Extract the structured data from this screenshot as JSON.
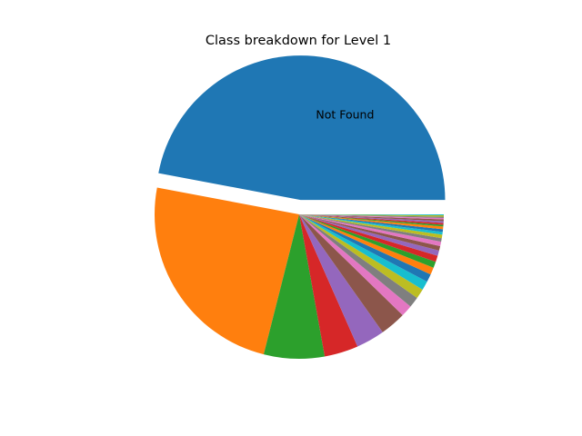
{
  "chart_data": {
    "type": "pie",
    "title": "Class breakdown for Level 1",
    "start_angle_deg": 0,
    "direction": "counterclockwise",
    "explode_first": true,
    "slices": [
      {
        "label": "Not Found",
        "value": 47.2,
        "color": "#1f77b4"
      },
      {
        "label": "",
        "value": 24.1,
        "color": "#ff7f0e"
      },
      {
        "label": "",
        "value": 6.8,
        "color": "#2ca02c"
      },
      {
        "label": "",
        "value": 3.8,
        "color": "#d62728"
      },
      {
        "label": "",
        "value": 3.2,
        "color": "#9467bd"
      },
      {
        "label": "",
        "value": 2.9,
        "color": "#8c564b"
      },
      {
        "label": "",
        "value": 1.3,
        "color": "#e377c2"
      },
      {
        "label": "",
        "value": 1.2,
        "color": "#7f7f7f"
      },
      {
        "label": "",
        "value": 1.1,
        "color": "#bcbd22"
      },
      {
        "label": "",
        "value": 1.0,
        "color": "#17becf"
      },
      {
        "label": "",
        "value": 0.9,
        "color": "#1f77b4"
      },
      {
        "label": "",
        "value": 0.8,
        "color": "#ff7f0e"
      },
      {
        "label": "",
        "value": 0.7,
        "color": "#2ca02c"
      },
      {
        "label": "",
        "value": 0.7,
        "color": "#d62728"
      },
      {
        "label": "",
        "value": 0.6,
        "color": "#9467bd"
      },
      {
        "label": "",
        "value": 0.5,
        "color": "#8c564b"
      },
      {
        "label": "",
        "value": 0.5,
        "color": "#e377c2"
      },
      {
        "label": "",
        "value": 0.4,
        "color": "#7f7f7f"
      },
      {
        "label": "",
        "value": 0.4,
        "color": "#bcbd22"
      },
      {
        "label": "",
        "value": 0.3,
        "color": "#17becf"
      },
      {
        "label": "",
        "value": 0.3,
        "color": "#1f77b4"
      },
      {
        "label": "",
        "value": 0.3,
        "color": "#ff7f0e"
      },
      {
        "label": "",
        "value": 0.2,
        "color": "#2ca02c"
      },
      {
        "label": "",
        "value": 0.2,
        "color": "#d62728"
      },
      {
        "label": "",
        "value": 0.2,
        "color": "#9467bd"
      },
      {
        "label": "",
        "value": 0.2,
        "color": "#8c564b"
      },
      {
        "label": "",
        "value": 0.15,
        "color": "#e377c2"
      },
      {
        "label": "",
        "value": 0.15,
        "color": "#7f7f7f"
      },
      {
        "label": "",
        "value": 0.15,
        "color": "#bcbd22"
      },
      {
        "label": "",
        "value": 0.1,
        "color": "#17becf"
      }
    ]
  }
}
